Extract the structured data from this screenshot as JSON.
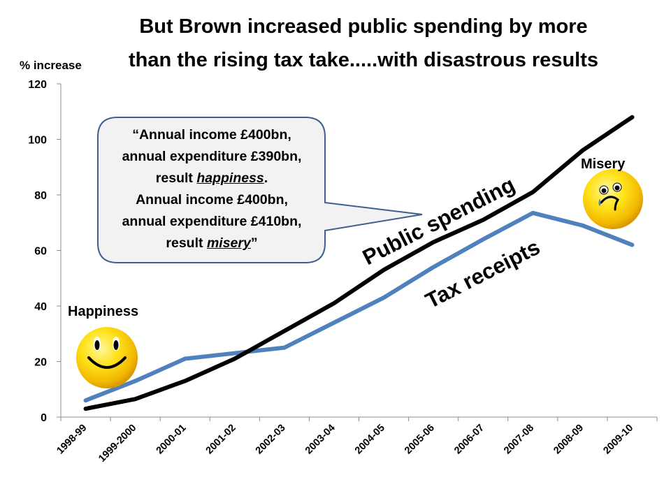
{
  "title_line1": "But Brown increased public spending by more",
  "title_line2": "than the rising tax take.....with disastrous results",
  "chart_data": {
    "type": "line",
    "ylabel": "% increase",
    "xlabel": "",
    "ylim": [
      0,
      120
    ],
    "yticks": [
      0,
      20,
      40,
      60,
      80,
      100,
      120
    ],
    "categories": [
      "1998-99",
      "1999-2000",
      "2000-01",
      "2001-02",
      "2002-03",
      "2003-04",
      "2004-05",
      "2005-06",
      "2006-07",
      "2007-08",
      "2008-09",
      "2009-10"
    ],
    "series": [
      {
        "name": "Public spending",
        "color": "#000000",
        "values": [
          3,
          6.5,
          13,
          21,
          31,
          41,
          53,
          63,
          71,
          81,
          96,
          108
        ]
      },
      {
        "name": "Tax receipts",
        "color": "#4f81bd",
        "values": [
          6,
          13,
          21,
          23,
          25,
          34,
          43,
          54,
          64,
          73.5,
          69,
          62
        ]
      }
    ],
    "grid": false,
    "legend": "inline labels"
  },
  "annotations": {
    "public_spending": "Public spending",
    "tax_receipts": "Tax receipts",
    "happiness": "Happiness",
    "misery": "Misery",
    "callout": {
      "line1": "“Annual income £400bn,",
      "line2": "annual expenditure £390bn,",
      "line3_pre": "result ",
      "line3_em": "happiness",
      "line3_post": ".",
      "line4": "Annual income £400bn,",
      "line5": "annual expenditure £410bn,",
      "line6_pre": "result ",
      "line6_em": "misery",
      "line6_post": "”"
    }
  },
  "icons": {
    "happy": "happy-face-icon",
    "sad": "sad-face-icon"
  }
}
